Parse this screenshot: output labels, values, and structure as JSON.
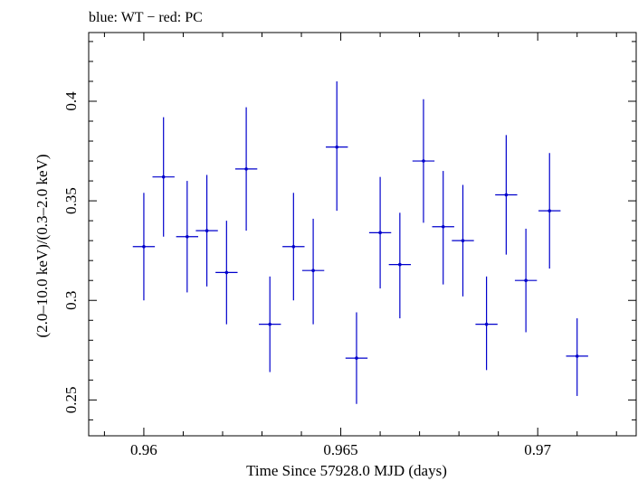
{
  "chart_data": {
    "type": "scatter",
    "title": "blue: WT − red: PC",
    "xlabel": "Time Since 57928.0 MJD (days)",
    "ylabel": "(2.0–10.0 keV)/(0.3–2.0 keV)",
    "xlim": [
      0.9586,
      0.9725
    ],
    "ylim": [
      0.232,
      0.4345
    ],
    "xticks": [
      0.96,
      0.965,
      0.97
    ],
    "xtick_labels": [
      "0.96",
      "0.965",
      "0.97"
    ],
    "yticks": [
      0.25,
      0.3,
      0.35,
      0.4
    ],
    "ytick_labels": [
      "0.25",
      "0.3",
      "0.35",
      "0.4"
    ],
    "grid": false,
    "colors": {
      "series": "#0000cc",
      "frame": "#000000"
    },
    "series": [
      {
        "points": [
          {
            "x": 0.96,
            "y": 0.327,
            "xerr": 0.00028,
            "ylo": 0.3,
            "yhi": 0.354
          },
          {
            "x": 0.9605,
            "y": 0.362,
            "xerr": 0.00028,
            "ylo": 0.332,
            "yhi": 0.392
          },
          {
            "x": 0.9611,
            "y": 0.332,
            "xerr": 0.00028,
            "ylo": 0.304,
            "yhi": 0.36
          },
          {
            "x": 0.9616,
            "y": 0.335,
            "xerr": 0.00028,
            "ylo": 0.307,
            "yhi": 0.363
          },
          {
            "x": 0.9621,
            "y": 0.314,
            "xerr": 0.00028,
            "ylo": 0.288,
            "yhi": 0.34
          },
          {
            "x": 0.9626,
            "y": 0.366,
            "xerr": 0.00028,
            "ylo": 0.335,
            "yhi": 0.397
          },
          {
            "x": 0.9632,
            "y": 0.288,
            "xerr": 0.00028,
            "ylo": 0.264,
            "yhi": 0.312
          },
          {
            "x": 0.9638,
            "y": 0.327,
            "xerr": 0.00028,
            "ylo": 0.3,
            "yhi": 0.354
          },
          {
            "x": 0.9643,
            "y": 0.315,
            "xerr": 0.00028,
            "ylo": 0.288,
            "yhi": 0.341
          },
          {
            "x": 0.9649,
            "y": 0.377,
            "xerr": 0.00028,
            "ylo": 0.345,
            "yhi": 0.41
          },
          {
            "x": 0.9654,
            "y": 0.271,
            "xerr": 0.00028,
            "ylo": 0.248,
            "yhi": 0.294
          },
          {
            "x": 0.966,
            "y": 0.334,
            "xerr": 0.00028,
            "ylo": 0.306,
            "yhi": 0.362
          },
          {
            "x": 0.9665,
            "y": 0.318,
            "xerr": 0.00028,
            "ylo": 0.291,
            "yhi": 0.344
          },
          {
            "x": 0.9671,
            "y": 0.37,
            "xerr": 0.00028,
            "ylo": 0.339,
            "yhi": 0.401
          },
          {
            "x": 0.9676,
            "y": 0.337,
            "xerr": 0.00028,
            "ylo": 0.308,
            "yhi": 0.365
          },
          {
            "x": 0.9681,
            "y": 0.33,
            "xerr": 0.00028,
            "ylo": 0.302,
            "yhi": 0.358
          },
          {
            "x": 0.9687,
            "y": 0.288,
            "xerr": 0.00028,
            "ylo": 0.265,
            "yhi": 0.312
          },
          {
            "x": 0.9692,
            "y": 0.353,
            "xerr": 0.00028,
            "ylo": 0.323,
            "yhi": 0.383
          },
          {
            "x": 0.9697,
            "y": 0.31,
            "xerr": 0.00028,
            "ylo": 0.284,
            "yhi": 0.336
          },
          {
            "x": 0.9703,
            "y": 0.345,
            "xerr": 0.00028,
            "ylo": 0.316,
            "yhi": 0.374
          },
          {
            "x": 0.971,
            "y": 0.272,
            "xerr": 0.00028,
            "ylo": 0.252,
            "yhi": 0.291
          }
        ]
      }
    ]
  }
}
